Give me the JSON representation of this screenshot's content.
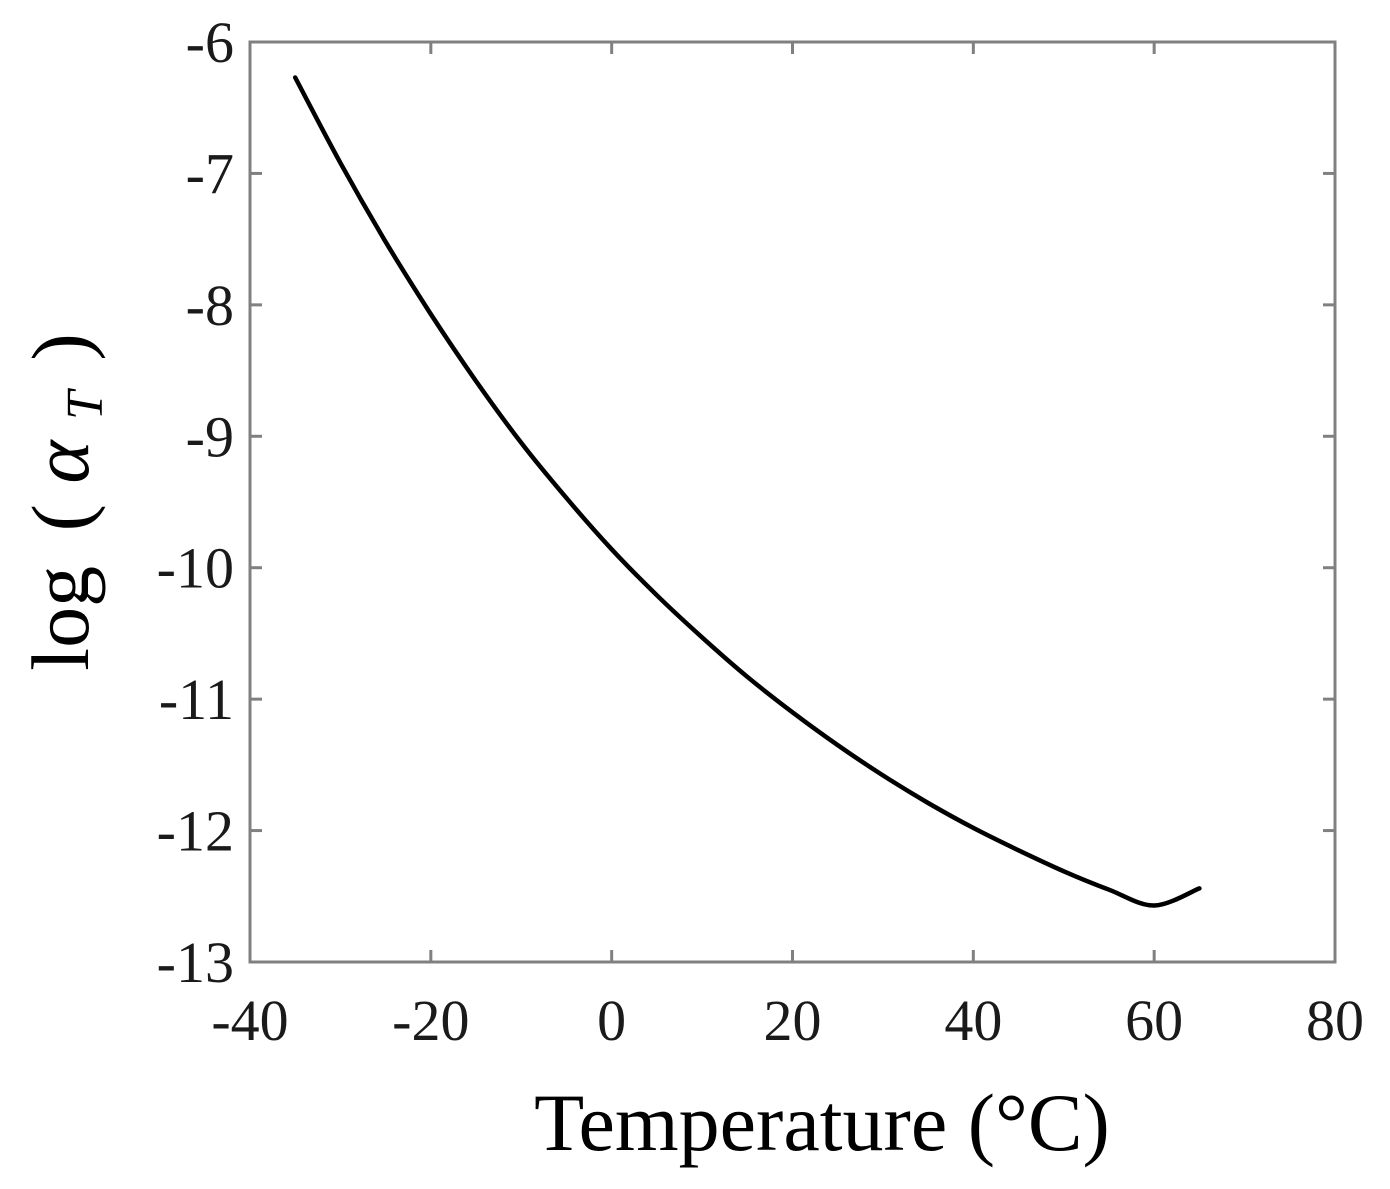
{
  "chart_data": {
    "type": "line",
    "title": "",
    "xlabel": "Temperature (°C)",
    "ylabel": {
      "prefix": "log",
      "open": "(",
      "symbol": "α",
      "subscript": "T",
      "close": ")"
    },
    "xlim": [
      -40,
      80
    ],
    "ylim": [
      -13,
      -6
    ],
    "xticks": [
      -40,
      -20,
      0,
      20,
      40,
      60,
      80
    ],
    "yticks": [
      -6,
      -7,
      -8,
      -9,
      -10,
      -11,
      -12,
      -13
    ],
    "grid": false,
    "legend": "none",
    "series": [
      {
        "color": "#000000",
        "x": [
          -35,
          -30,
          -25,
          -20,
          -15,
          -10,
          -5,
          0,
          5,
          10,
          15,
          20,
          25,
          30,
          35,
          40,
          45,
          50,
          55,
          60,
          65
        ],
        "y": [
          -6.27,
          -6.92,
          -7.52,
          -8.07,
          -8.58,
          -9.05,
          -9.47,
          -9.86,
          -10.21,
          -10.53,
          -10.83,
          -11.1,
          -11.35,
          -11.58,
          -11.79,
          -11.98,
          -12.15,
          -12.31,
          -12.45,
          -12.57,
          -12.44
        ]
      }
    ]
  }
}
